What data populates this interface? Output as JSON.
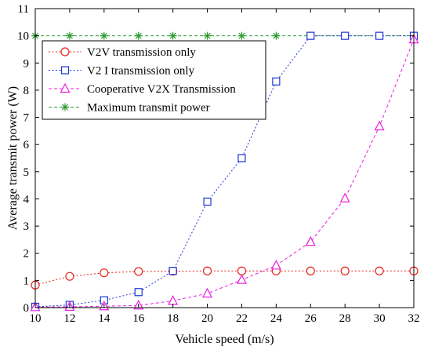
{
  "chart_data": {
    "type": "line",
    "title": "",
    "xlabel": "Vehicle speed (m/s)",
    "ylabel": "Average transmit power (W)",
    "xlim": [
      10,
      32
    ],
    "ylim": [
      0,
      11
    ],
    "xticks": [
      10,
      12,
      14,
      16,
      18,
      20,
      22,
      24,
      26,
      28,
      30,
      32
    ],
    "yticks": [
      0,
      1,
      2,
      3,
      4,
      5,
      6,
      7,
      8,
      9,
      10,
      11
    ],
    "grid": false,
    "legend_position": "top-left",
    "x": [
      10,
      12,
      14,
      16,
      18,
      20,
      22,
      24,
      26,
      28,
      30,
      32
    ],
    "series": [
      {
        "name": "V2V transmission only",
        "marker": "circle",
        "color": "#e8201c",
        "linestyle": "dotted",
        "values": [
          0.83,
          1.15,
          1.28,
          1.33,
          1.34,
          1.35,
          1.35,
          1.35,
          1.35,
          1.35,
          1.35,
          1.35
        ]
      },
      {
        "name": "V2 I  transmission only",
        "marker": "square",
        "color": "#1f35d6",
        "linestyle": "dotted",
        "values": [
          0.03,
          0.1,
          0.27,
          0.57,
          1.35,
          3.9,
          5.5,
          8.32,
          10.0,
          10.0,
          10.0,
          10.0
        ]
      },
      {
        "name": "Cooperative V2X Transmission",
        "marker": "triangle",
        "color": "#e81fe0",
        "linestyle": "dashed",
        "values": [
          0.02,
          0.03,
          0.05,
          0.08,
          0.25,
          0.52,
          1.02,
          1.55,
          2.42,
          4.02,
          6.67,
          9.87
        ]
      },
      {
        "name": "Maximum transmit power",
        "marker": "star",
        "color": "#2e9b2e",
        "linestyle": "dashed",
        "values": [
          10,
          10,
          10,
          10,
          10,
          10,
          10,
          10,
          10,
          10,
          10,
          10
        ]
      }
    ]
  }
}
